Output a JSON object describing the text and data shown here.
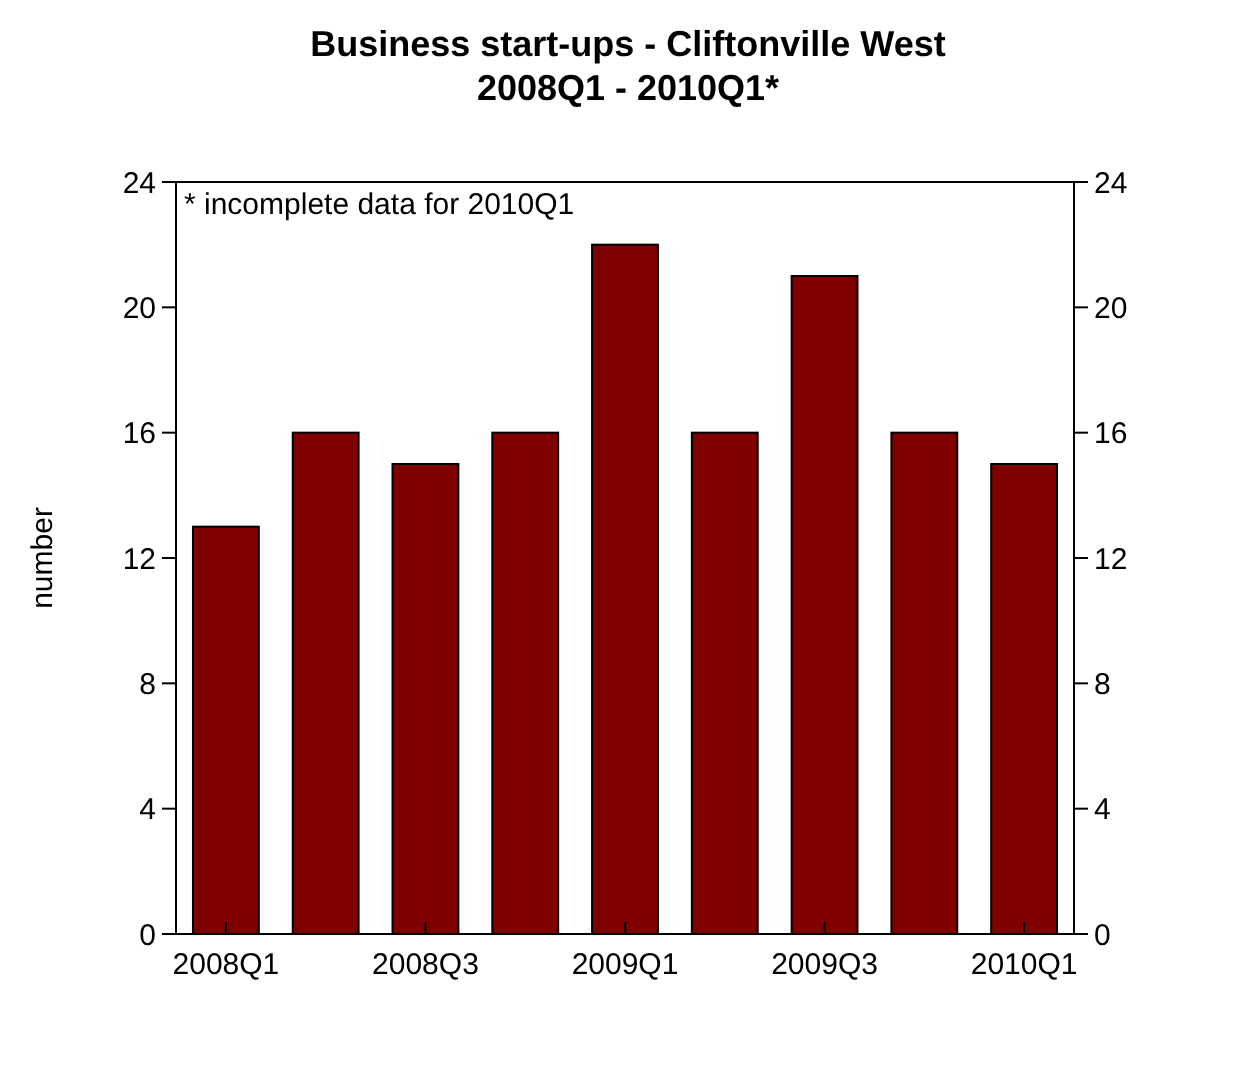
{
  "chart_data": {
    "type": "bar",
    "title": "Business start-ups - Cliftonville West\n2008Q1 - 2010Q1*",
    "ylabel": "number",
    "categories": [
      "2008Q1",
      null,
      "2008Q3",
      null,
      "2009Q1",
      null,
      "2009Q3",
      null,
      "2010Q1"
    ],
    "values": [
      13,
      16,
      15,
      16,
      22,
      16,
      21,
      16,
      15
    ],
    "color": "#800000",
    "ylim": [
      0,
      24
    ],
    "yticks": [
      0,
      4,
      8,
      12,
      16,
      20,
      24
    ],
    "y2lim": [
      0,
      24
    ],
    "y2ticks": [
      0,
      4,
      8,
      12,
      16,
      20,
      24
    ],
    "annotations": [
      "* incomplete data for 2010Q1"
    ],
    "grid": false
  }
}
